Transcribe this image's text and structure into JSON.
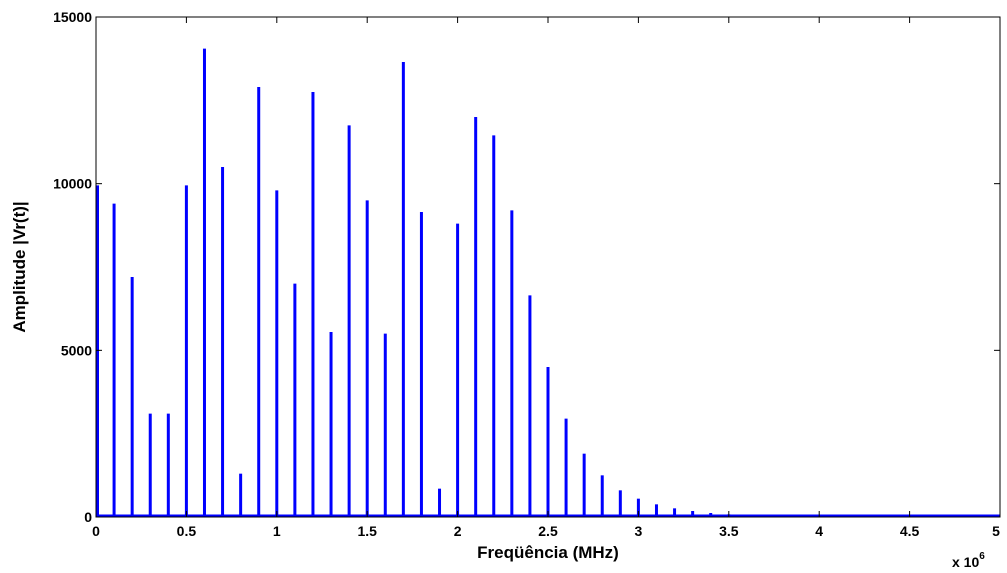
{
  "chart_data": {
    "type": "bar",
    "title": "",
    "xlabel": "Freqüência (MHz)",
    "ylabel": "Amplitude |Vr(t)|",
    "x_exponent_base": "x 10",
    "x_exponent_power": "6",
    "xlim": [
      0,
      5000000
    ],
    "ylim": [
      0,
      15000
    ],
    "xticks": [
      0,
      500000,
      1000000,
      1500000,
      2000000,
      2500000,
      3000000,
      3500000,
      4000000,
      4500000,
      5000000
    ],
    "xtick_labels": [
      "0",
      "0.5",
      "1",
      "1.5",
      "2",
      "2.5",
      "3",
      "3.5",
      "4",
      "4.5",
      "5"
    ],
    "yticks": [
      0,
      5000,
      10000,
      15000
    ],
    "ytick_labels": [
      "0",
      "5000",
      "10000",
      "15000"
    ],
    "grid": false,
    "line_color": "#0000ff",
    "x": [
      0,
      100000,
      200000,
      300000,
      400000,
      500000,
      600000,
      700000,
      800000,
      900000,
      1000000,
      1100000,
      1200000,
      1300000,
      1400000,
      1500000,
      1600000,
      1700000,
      1800000,
      1900000,
      2000000,
      2100000,
      2200000,
      2300000,
      2400000,
      2500000,
      2600000,
      2700000,
      2800000,
      2900000,
      3000000,
      3100000,
      3200000,
      3300000,
      3400000,
      3500000,
      3600000,
      3700000,
      3800000,
      3900000
    ],
    "values": [
      9950,
      9400,
      7200,
      3100,
      3100,
      9950,
      14050,
      10500,
      1300,
      12900,
      9800,
      7000,
      12750,
      5550,
      11750,
      9500,
      5500,
      13650,
      9150,
      850,
      8800,
      12000,
      11450,
      9200,
      6650,
      4500,
      2950,
      1900,
      1250,
      800,
      550,
      380,
      260,
      180,
      120,
      80,
      55,
      35,
      20,
      12
    ]
  }
}
